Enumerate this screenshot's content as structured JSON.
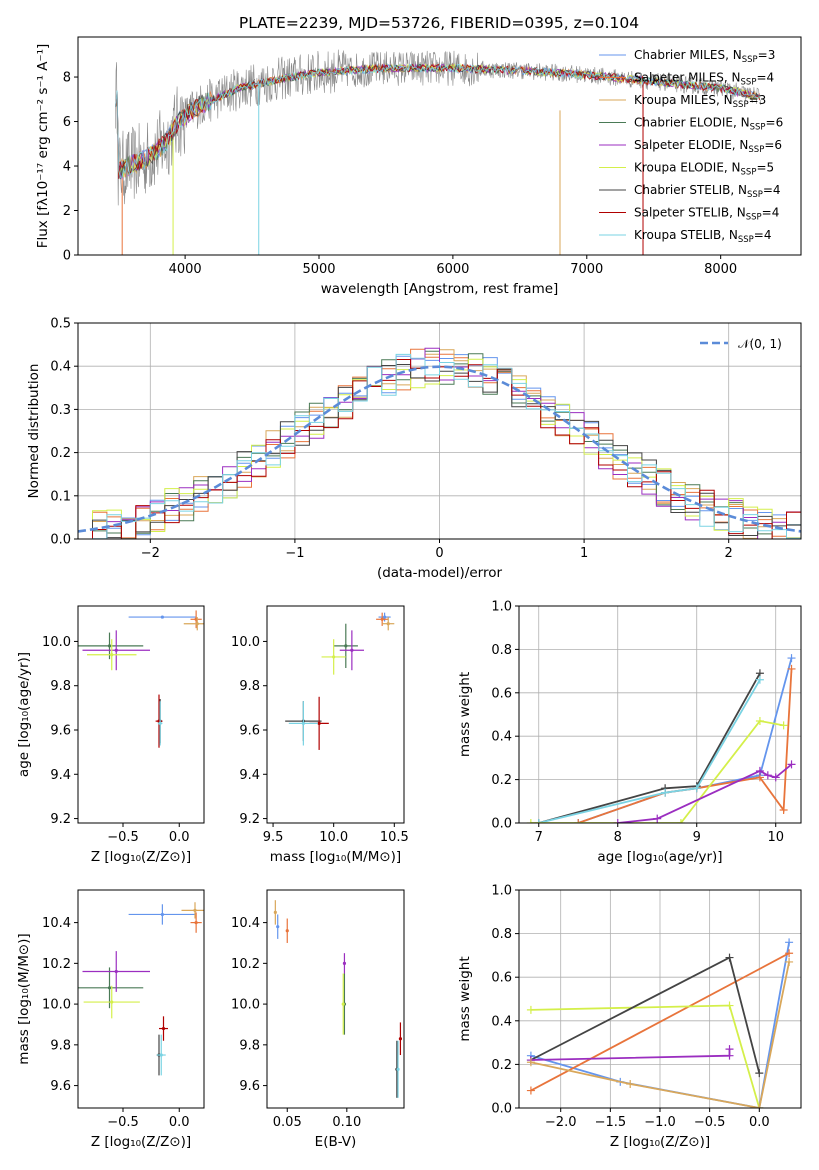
{
  "title": "PLATE=2239, MJD=53726, FIBERID=0395, z=0.104",
  "colors": {
    "Chabrier MILES": "#6495ed",
    "Salpeter MILES": "#e8743b",
    "Kroupa MILES": "#d9a75a",
    "Chabrier ELODIE": "#4a7a56",
    "Salpeter ELODIE": "#9b2ec0",
    "Kroupa ELODIE": "#d4ef4a",
    "Chabrier STELIB": "#444444",
    "Salpeter STELIB": "#b00000",
    "Kroupa STELIB": "#7ad3e3",
    "gaussian": "#5b8bd8",
    "data": "#888888"
  },
  "chart_data": [
    {
      "id": "spectrum",
      "type": "line",
      "xlabel": "wavelength [Angstrom, rest frame]",
      "ylabel": "Flux [fλ10⁻¹⁷ erg cm⁻² s⁻¹ A⁻¹]",
      "xlim": [
        3200,
        8600
      ],
      "ylim": [
        0,
        9.8
      ],
      "xticks": [
        4000,
        5000,
        6000,
        7000,
        8000
      ],
      "yticks": [
        0,
        2,
        4,
        6,
        8
      ],
      "legend_position": "upper right",
      "legend": [
        {
          "name": "Chabrier MILES",
          "n": "3"
        },
        {
          "name": "Salpeter MILES",
          "n": "4"
        },
        {
          "name": "Kroupa MILES",
          "n": "3"
        },
        {
          "name": "Chabrier ELODIE",
          "n": "6"
        },
        {
          "name": "Salpeter ELODIE",
          "n": "6"
        },
        {
          "name": "Kroupa ELODIE",
          "n": "5"
        },
        {
          "name": "Chabrier STELIB",
          "n": "4"
        },
        {
          "name": "Salpeter STELIB",
          "n": "4"
        },
        {
          "name": "Kroupa STELIB",
          "n": "4"
        }
      ],
      "model_trend": {
        "x": [
          3500,
          3700,
          3850,
          3950,
          4100,
          4400,
          4700,
          5000,
          5500,
          6000,
          6500,
          7000,
          7500,
          8000,
          8300
        ],
        "y": [
          3.8,
          4.3,
          5.0,
          6.0,
          6.7,
          7.5,
          7.9,
          8.2,
          8.4,
          8.4,
          8.3,
          8.1,
          7.8,
          7.5,
          7.1
        ]
      }
    },
    {
      "id": "residuals",
      "type": "line",
      "xlabel": "(data-model)/error",
      "ylabel": "Normed distribution",
      "xlim": [
        -2.5,
        2.5
      ],
      "ylim": [
        0,
        0.5
      ],
      "xticks": [
        -2,
        -1,
        0,
        1,
        2
      ],
      "xtick_labels": [
        "−2",
        "−1",
        "0",
        "1",
        "2"
      ],
      "yticks": [
        0.0,
        0.1,
        0.2,
        0.3,
        0.4,
        0.5
      ],
      "ytick_labels": [
        "0.0",
        "0.1",
        "0.2",
        "0.3",
        "0.4",
        "0.5"
      ],
      "legend_label": "𝒩(0, 1)",
      "legend_position": "upper right",
      "grid": true
    },
    {
      "id": "age-vs-Z",
      "type": "scatter",
      "xlabel": "Z [log₁₀(Z/Z⊙)]",
      "ylabel": "age  [log₁₀(age/yr)]",
      "xlim": [
        -0.9,
        0.22
      ],
      "ylim": [
        9.18,
        10.16
      ],
      "xticks": [
        -0.5,
        0.0
      ],
      "xtick_labels": [
        "−0.5",
        "0.0"
      ],
      "yticks": [
        9.2,
        9.4,
        9.6,
        9.8,
        10.0
      ],
      "ytick_labels": [
        "9.2",
        "9.4",
        "9.6",
        "9.8",
        "10.0"
      ],
      "points": [
        {
          "series": "Chabrier MILES",
          "x": -0.15,
          "y": 10.11,
          "xerr": 0.3,
          "yerr": 0
        },
        {
          "series": "Salpeter MILES",
          "x": 0.15,
          "y": 10.1,
          "xerr": 0.05,
          "yerr": 0.04
        },
        {
          "series": "Kroupa MILES",
          "x": 0.16,
          "y": 10.08,
          "xerr": 0.12,
          "yerr": 0.03
        },
        {
          "series": "Chabrier ELODIE",
          "x": -0.62,
          "y": 9.98,
          "xerr": 0.3,
          "yerr": 0.06
        },
        {
          "series": "Salpeter ELODIE",
          "x": -0.56,
          "y": 9.96,
          "xerr": 0.3,
          "yerr": 0.09
        },
        {
          "series": "Kroupa ELODIE",
          "x": -0.6,
          "y": 9.94,
          "xerr": 0.22,
          "yerr": 0.07
        },
        {
          "series": "Chabrier STELIB",
          "x": -0.17,
          "y": 9.64,
          "xerr": 0.02,
          "yerr": 0.1
        },
        {
          "series": "Salpeter STELIB",
          "x": -0.18,
          "y": 9.64,
          "xerr": 0.03,
          "yerr": 0.12
        },
        {
          "series": "Kroupa STELIB",
          "x": -0.17,
          "y": 9.63,
          "xerr": 0.02,
          "yerr": 0.1
        }
      ]
    },
    {
      "id": "age-vs-mass",
      "type": "scatter",
      "xlabel": "mass [log₁₀(M/M⊙)]",
      "ylabel": "",
      "xlim": [
        9.45,
        10.58
      ],
      "ylim": [
        9.18,
        10.16
      ],
      "xticks": [
        9.5,
        10.0,
        10.5
      ],
      "xtick_labels": [
        "9.5",
        "10.0",
        "10.5"
      ],
      "yticks": [
        9.2,
        9.4,
        9.6,
        9.8,
        10.0
      ],
      "ytick_labels": [
        "9.2",
        "9.4",
        "9.6",
        "9.8",
        "10.0"
      ],
      "points": [
        {
          "series": "Chabrier MILES",
          "x": 10.42,
          "y": 10.11,
          "xerr": 0.05,
          "yerr": 0.02
        },
        {
          "series": "Salpeter MILES",
          "x": 10.4,
          "y": 10.1,
          "xerr": 0.05,
          "yerr": 0.03
        },
        {
          "series": "Kroupa MILES",
          "x": 10.45,
          "y": 10.08,
          "xerr": 0.05,
          "yerr": 0.03
        },
        {
          "series": "Chabrier ELODIE",
          "x": 10.1,
          "y": 9.98,
          "xerr": 0.1,
          "yerr": 0.1
        },
        {
          "series": "Salpeter ELODIE",
          "x": 10.15,
          "y": 9.96,
          "xerr": 0.1,
          "yerr": 0.09
        },
        {
          "series": "Kroupa ELODIE",
          "x": 10.0,
          "y": 9.93,
          "xerr": 0.1,
          "yerr": 0.08
        },
        {
          "series": "Chabrier STELIB",
          "x": 9.75,
          "y": 9.64,
          "xerr": 0.15,
          "yerr": 0.09
        },
        {
          "series": "Salpeter STELIB",
          "x": 9.88,
          "y": 9.63,
          "xerr": 0.08,
          "yerr": 0.12
        },
        {
          "series": "Kroupa STELIB",
          "x": 9.75,
          "y": 9.63,
          "xerr": 0.12,
          "yerr": 0.1
        }
      ]
    },
    {
      "id": "weight-vs-age",
      "type": "line",
      "xlabel": "age  [log₁₀(age/yr)]",
      "ylabel": "mass weight",
      "xlim": [
        6.75,
        10.32
      ],
      "ylim": [
        0,
        1
      ],
      "xticks": [
        7,
        8,
        9,
        10
      ],
      "xtick_labels": [
        "7",
        "8",
        "9",
        "10"
      ],
      "yticks": [
        0,
        0.2,
        0.4,
        0.6,
        0.8,
        1.0
      ],
      "ytick_labels": [
        "0.0",
        "0.2",
        "0.4",
        "0.6",
        "0.8",
        "1.0"
      ],
      "grid": true,
      "series": [
        {
          "name": "Chabrier MILES",
          "x": [
            7.5,
            8.6,
            9.0,
            9.8,
            10.2
          ],
          "y": [
            0.0,
            0.14,
            0.16,
            0.22,
            0.76
          ]
        },
        {
          "name": "Salpeter MILES",
          "x": [
            7.5,
            8.6,
            9.0,
            9.8,
            10.1,
            10.2
          ],
          "y": [
            0.0,
            0.14,
            0.16,
            0.21,
            0.06,
            0.71
          ]
        },
        {
          "name": "Chabrier STELIB",
          "x": [
            7.0,
            8.6,
            9.0,
            9.8
          ],
          "y": [
            0.0,
            0.16,
            0.17,
            0.69
          ]
        },
        {
          "name": "Kroupa STELIB",
          "x": [
            7.0,
            8.6,
            9.0,
            9.8
          ],
          "y": [
            0.0,
            0.14,
            0.16,
            0.66
          ]
        },
        {
          "name": "Kroupa ELODIE",
          "x": [
            6.9,
            8.8,
            9.8,
            10.1
          ],
          "y": [
            0.0,
            0.0,
            0.47,
            0.45
          ]
        },
        {
          "name": "Salpeter ELODIE",
          "x": [
            8.0,
            8.5,
            9.8,
            9.9,
            10.0,
            10.2
          ],
          "y": [
            0.0,
            0.02,
            0.24,
            0.22,
            0.21,
            0.27
          ]
        }
      ]
    },
    {
      "id": "mass-vs-Z",
      "type": "scatter",
      "xlabel": "Z [log₁₀(Z/Z⊙)]",
      "ylabel": "mass [log₁₀(M/M⊙)]",
      "xlim": [
        -0.9,
        0.22
      ],
      "ylim": [
        9.49,
        10.56
      ],
      "xticks": [
        -0.5,
        0.0
      ],
      "xtick_labels": [
        "−0.5",
        "0.0"
      ],
      "yticks": [
        9.6,
        9.8,
        10.0,
        10.2,
        10.4
      ],
      "ytick_labels": [
        "9.6",
        "9.8",
        "10.0",
        "10.2",
        "10.4"
      ],
      "points": [
        {
          "series": "Chabrier MILES",
          "x": -0.15,
          "y": 10.44,
          "xerr": 0.3,
          "yerr": 0.05
        },
        {
          "series": "Salpeter MILES",
          "x": 0.15,
          "y": 10.4,
          "xerr": 0.05,
          "yerr": 0.05
        },
        {
          "series": "Kroupa MILES",
          "x": 0.14,
          "y": 10.46,
          "xerr": 0.12,
          "yerr": 0.04
        },
        {
          "series": "Chabrier ELODIE",
          "x": -0.62,
          "y": 10.08,
          "xerr": 0.3,
          "yerr": 0.1
        },
        {
          "series": "Salpeter ELODIE",
          "x": -0.56,
          "y": 10.16,
          "xerr": 0.3,
          "yerr": 0.1
        },
        {
          "series": "Kroupa ELODIE",
          "x": -0.6,
          "y": 10.01,
          "xerr": 0.25,
          "yerr": 0.08
        },
        {
          "series": "Chabrier STELIB",
          "x": -0.18,
          "y": 9.75,
          "xerr": 0.02,
          "yerr": 0.1
        },
        {
          "series": "Salpeter STELIB",
          "x": -0.14,
          "y": 9.88,
          "xerr": 0.04,
          "yerr": 0.06
        },
        {
          "series": "Kroupa STELIB",
          "x": -0.16,
          "y": 9.75,
          "xerr": 0.04,
          "yerr": 0.1
        }
      ]
    },
    {
      "id": "mass-vs-ebv",
      "type": "scatter",
      "xlabel": "E(B-V)",
      "ylabel": "",
      "xlim": [
        0.033,
        0.148
      ],
      "ylim": [
        9.49,
        10.56
      ],
      "xticks": [
        0.05,
        0.1
      ],
      "xtick_labels": [
        "0.05",
        "0.10"
      ],
      "yticks": [
        9.6,
        9.8,
        10.0,
        10.2,
        10.4
      ],
      "ytick_labels": [
        "9.6",
        "9.8",
        "10.0",
        "10.2",
        "10.4"
      ],
      "points": [
        {
          "series": "Chabrier MILES",
          "x": 0.042,
          "y": 10.38,
          "xerr": 0,
          "yerr": 0.06
        },
        {
          "series": "Salpeter MILES",
          "x": 0.05,
          "y": 10.36,
          "xerr": 0,
          "yerr": 0.06
        },
        {
          "series": "Kroupa MILES",
          "x": 0.04,
          "y": 10.45,
          "xerr": 0,
          "yerr": 0.06
        },
        {
          "series": "Chabrier ELODIE",
          "x": 0.098,
          "y": 10.0,
          "xerr": 0,
          "yerr": 0.15
        },
        {
          "series": "Salpeter ELODIE",
          "x": 0.098,
          "y": 10.2,
          "xerr": 0,
          "yerr": 0.05
        },
        {
          "series": "Kroupa ELODIE",
          "x": 0.097,
          "y": 10.0,
          "xerr": 0,
          "yerr": 0.15
        },
        {
          "series": "Chabrier STELIB",
          "x": 0.142,
          "y": 9.68,
          "xerr": 0,
          "yerr": 0.14
        },
        {
          "series": "Salpeter STELIB",
          "x": 0.145,
          "y": 9.83,
          "xerr": 0,
          "yerr": 0.08
        },
        {
          "series": "Kroupa STELIB",
          "x": 0.143,
          "y": 9.68,
          "xerr": 0,
          "yerr": 0.14
        }
      ]
    },
    {
      "id": "weight-vs-Z",
      "type": "line",
      "xlabel": "Z [log₁₀(Z/Z⊙)]",
      "ylabel": "mass weight",
      "xlim": [
        -2.42,
        0.42
      ],
      "ylim": [
        0,
        1
      ],
      "xticks": [
        -2.0,
        -1.5,
        -1.0,
        -0.5,
        0.0
      ],
      "xtick_labels": [
        "−2.0",
        "−1.5",
        "−1.0",
        "−0.5",
        "0.0"
      ],
      "yticks": [
        0,
        0.2,
        0.4,
        0.6,
        0.8,
        1.0
      ],
      "ytick_labels": [
        "0.0",
        "0.2",
        "0.4",
        "0.6",
        "0.8",
        "1.0"
      ],
      "grid": true,
      "series": [
        {
          "name": "Chabrier MILES",
          "x": [
            -2.3,
            -1.4,
            0.0,
            0.3
          ],
          "y": [
            0.24,
            0.12,
            0.0,
            0.76
          ]
        },
        {
          "name": "Salpeter MILES",
          "x": [
            -2.3,
            0.3
          ],
          "y": [
            0.08,
            0.71
          ]
        },
        {
          "name": "Kroupa ELODIE",
          "x": [
            -2.3,
            -0.3,
            0.0
          ],
          "y": [
            0.45,
            0.47,
            0.0
          ]
        },
        {
          "name": "Chabrier STELIB",
          "x": [
            -2.3,
            -0.3,
            0.0
          ],
          "y": [
            0.22,
            0.69,
            0.16
          ]
        },
        {
          "name": "Salpeter ELODIE",
          "x": [
            -2.3,
            -0.3,
            -0.3
          ],
          "y": [
            0.22,
            0.24,
            0.27
          ]
        },
        {
          "name": "Kroupa MILES",
          "x": [
            -2.3,
            -1.3,
            0.0,
            0.3
          ],
          "y": [
            0.21,
            0.11,
            0.0,
            0.67
          ]
        }
      ]
    }
  ]
}
